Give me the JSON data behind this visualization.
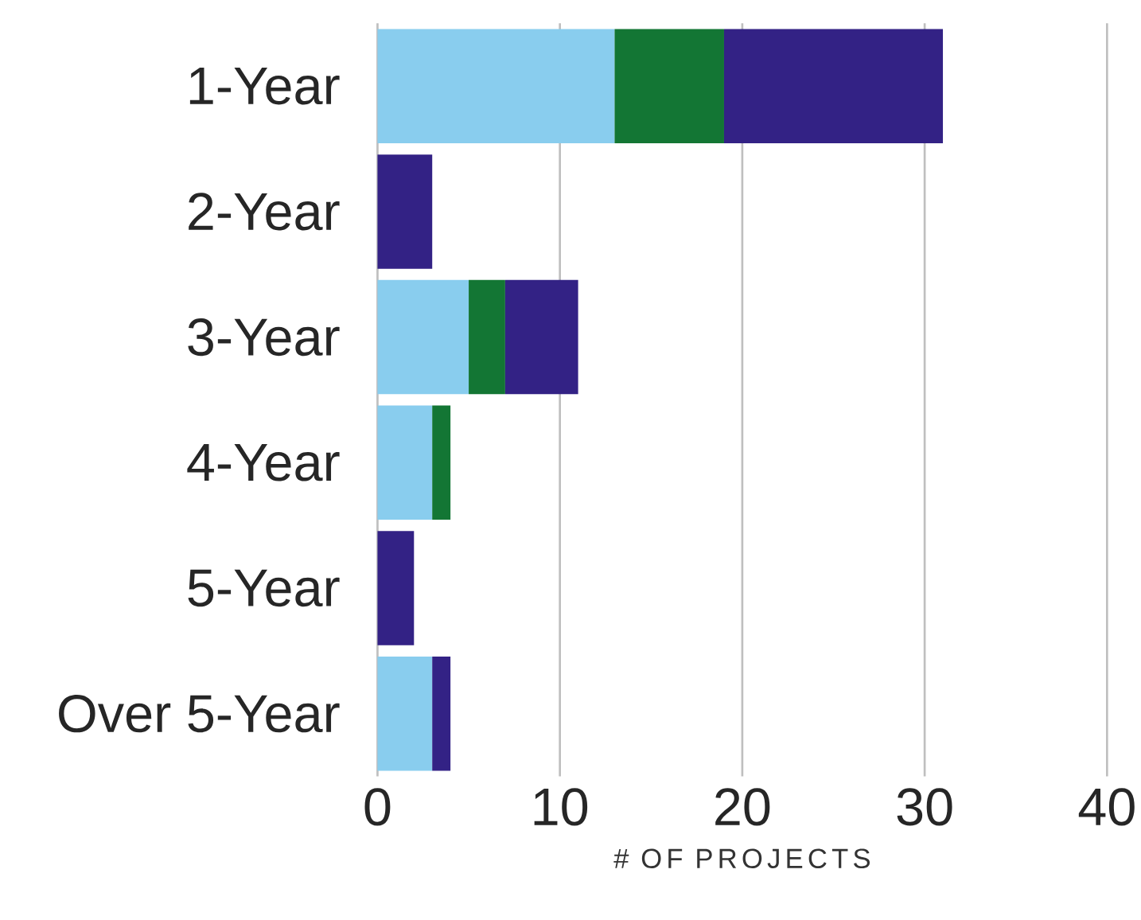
{
  "chart_data": {
    "type": "bar",
    "orientation": "horizontal",
    "stacked": true,
    "xlabel": "# OF PROJECTS",
    "categories": [
      "1-Year",
      "2-Year",
      "3-Year",
      "4-Year",
      "5-Year",
      "Over 5-Year"
    ],
    "series": [
      {
        "color": "#89cdee",
        "values": [
          13,
          null,
          5,
          3,
          null,
          3
        ]
      },
      {
        "color": "#137634",
        "values": [
          6,
          null,
          2,
          1,
          null,
          null
        ]
      },
      {
        "color": "#332285",
        "values": [
          12,
          3,
          4,
          null,
          2,
          1
        ]
      }
    ],
    "xlim": [
      0,
      40
    ],
    "xticks": [
      0,
      10,
      20,
      30,
      40
    ],
    "grid": "x"
  }
}
